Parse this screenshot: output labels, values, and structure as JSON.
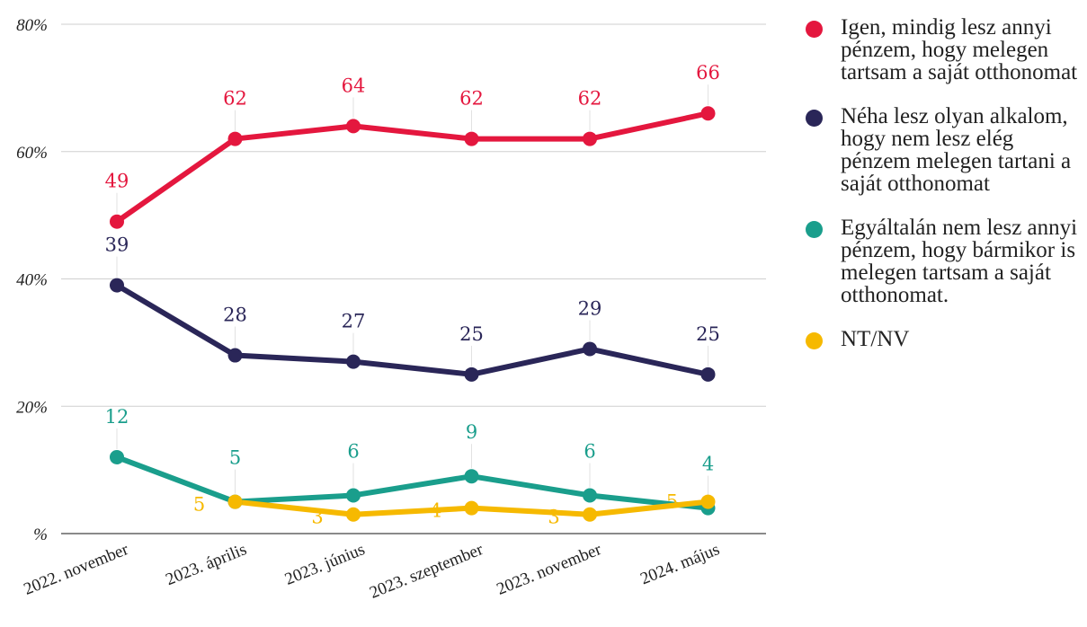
{
  "chart_data": {
    "type": "line",
    "categories": [
      "2022. november",
      "2023. április",
      "2023. június",
      "2023. szeptember",
      "2023. november",
      "2024. május"
    ],
    "y_ticks": [
      "%",
      "20%",
      "40%",
      "60%",
      "80%"
    ],
    "ylim": [
      0,
      80
    ],
    "grid": true,
    "legend_position": "right",
    "series": [
      {
        "name": "Igen, mindig lesz annyi pénzem, hogy melegen tartsam a saját otthonomat",
        "color": "#e4173e",
        "values": [
          49,
          62,
          64,
          62,
          62,
          66
        ]
      },
      {
        "name": "Néha lesz olyan alkalom, hogy nem lesz elég pénzem melegen tartani a saját otthonomat",
        "color": "#2a2658",
        "values": [
          39,
          28,
          27,
          25,
          29,
          25
        ]
      },
      {
        "name": "Egyáltalán nem lesz annyi pénzem, hogy bármikor is melegen tartsam a saját otthonomat.",
        "color": "#1a9e8c",
        "values": [
          12,
          5,
          6,
          9,
          6,
          4
        ]
      },
      {
        "name": "NT/NV",
        "color": "#f6b900",
        "values": [
          null,
          5,
          3,
          4,
          3,
          5
        ]
      }
    ]
  }
}
